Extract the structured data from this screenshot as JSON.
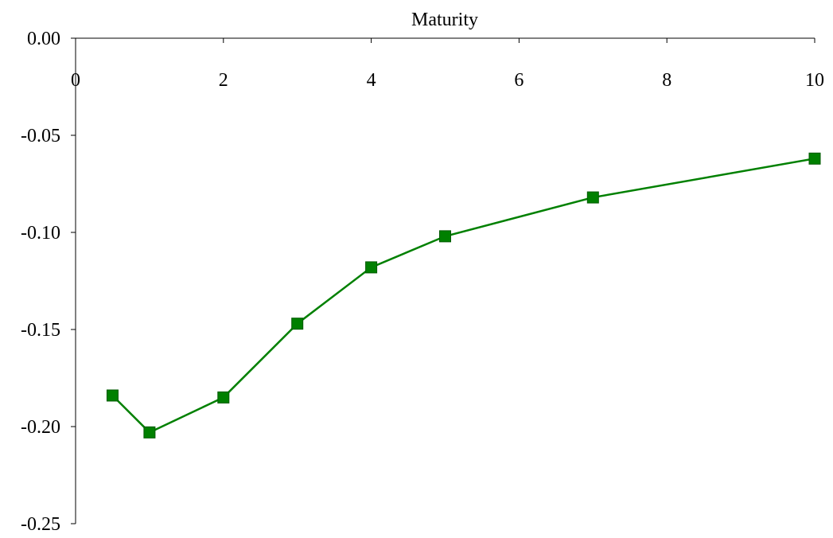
{
  "chart_data": {
    "type": "line",
    "title": "",
    "xlabel": "Maturity",
    "ylabel": "",
    "xlim": [
      0,
      10
    ],
    "ylim": [
      -0.25,
      0.0
    ],
    "x_ticks": [
      0,
      2,
      4,
      6,
      8,
      10
    ],
    "x_tick_labels": [
      "0",
      "2",
      "4",
      "6",
      "8",
      "10"
    ],
    "y_ticks": [
      0.0,
      -0.05,
      -0.1,
      -0.15,
      -0.2,
      -0.25
    ],
    "y_tick_labels": [
      "0.00",
      "-0.05",
      "-0.10",
      "-0.15",
      "-0.20",
      "-0.25"
    ],
    "x_axis_position": "top",
    "grid": false,
    "legend": "none",
    "series": [
      {
        "color": "#008000",
        "marker": "square",
        "x": [
          0.5,
          1,
          2,
          3,
          4,
          5,
          7,
          10
        ],
        "y": [
          -0.184,
          -0.203,
          -0.185,
          -0.147,
          -0.118,
          -0.102,
          -0.082,
          -0.062
        ]
      }
    ]
  }
}
